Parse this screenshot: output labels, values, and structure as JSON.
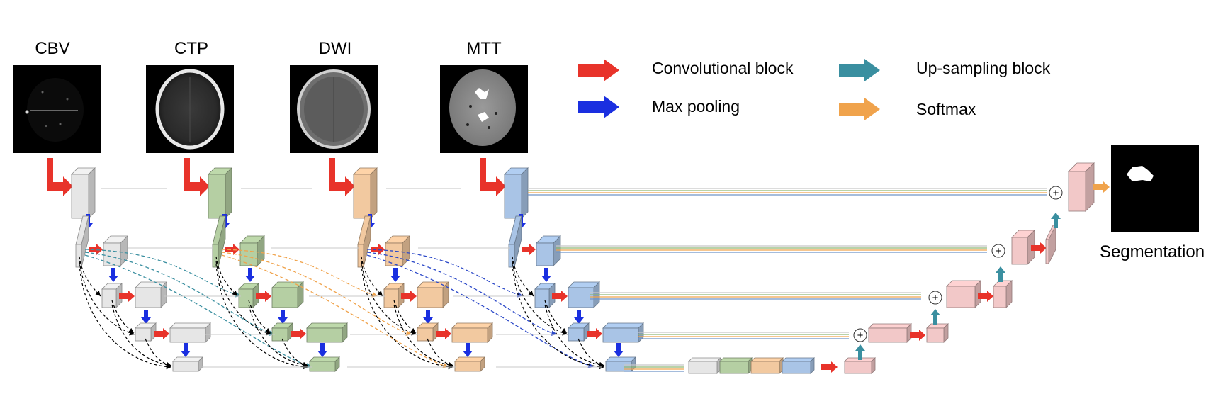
{
  "modalities": [
    {
      "label": "CBV",
      "color": "#e6e6e6"
    },
    {
      "label": "CTP",
      "color": "#b5cfa3"
    },
    {
      "label": "DWI",
      "color": "#f2c9a0"
    },
    {
      "label": "MTT",
      "color": "#a9c4e6"
    }
  ],
  "legend": {
    "conv": "Convolutional block",
    "maxpool": "Max pooling",
    "upsample": "Up-sampling block",
    "softmax": "Softmax"
  },
  "output": {
    "label": "Segmentation"
  },
  "colors": {
    "conv_arrow": "#e8332a",
    "pool_arrow": "#1a2fe0",
    "up_arrow": "#3a8fa0",
    "softmax_arrow": "#f0a34c",
    "decoder_block": "#f2c8c8",
    "skip_cbv": "#c8c8c8",
    "skip_ctp": "#8fb873",
    "skip_dwi": "#f0a34c",
    "skip_mtt": "#6f94c8"
  },
  "concat_symbol": "+"
}
